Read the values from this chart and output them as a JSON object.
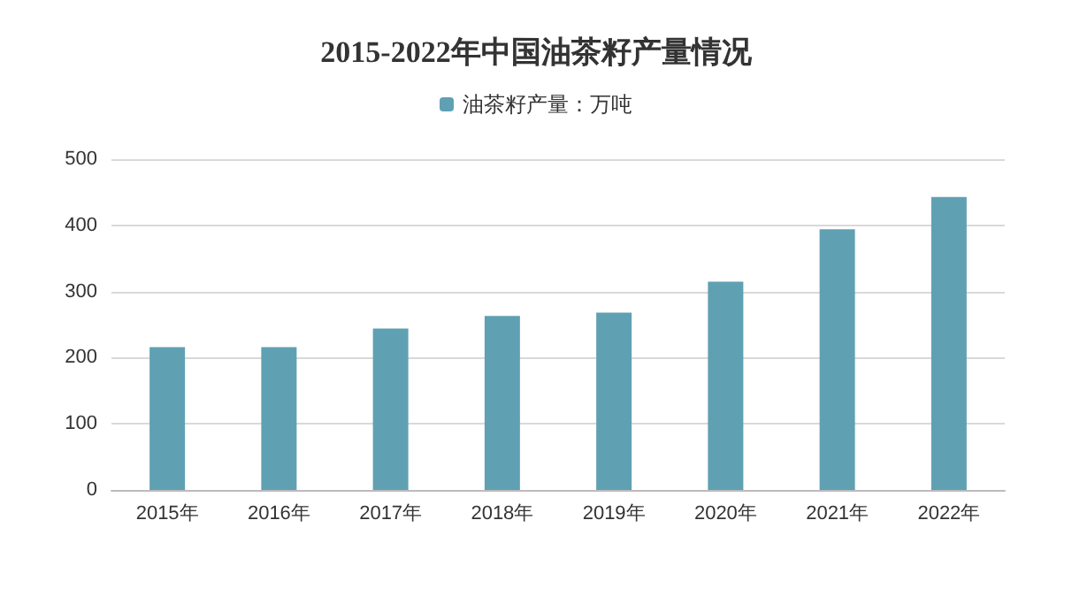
{
  "chart_data": {
    "type": "bar",
    "title": "2015-2022年中国油茶籽产量情况",
    "categories": [
      "2015年",
      "2016年",
      "2017年",
      "2018年",
      "2019年",
      "2020年",
      "2021年",
      "2022年"
    ],
    "series": [
      {
        "name": "油茶籽产量：万吨",
        "color": "#60a0b3",
        "values": [
          216,
          216,
          244,
          263,
          268,
          315,
          394,
          443
        ]
      }
    ],
    "ylim": [
      0,
      500
    ],
    "yticks": [
      0,
      100,
      200,
      300,
      400,
      500
    ],
    "grid": "y",
    "legend": "top"
  }
}
